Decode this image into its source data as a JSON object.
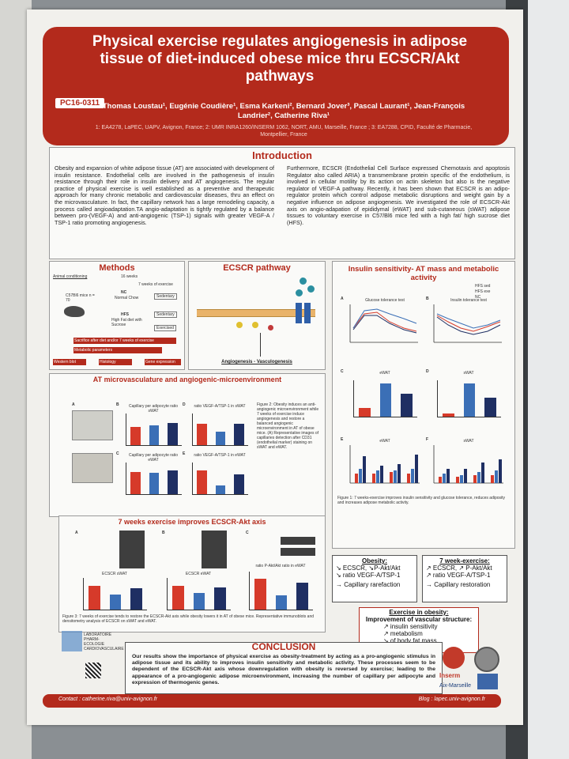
{
  "poster": {
    "code": "PC16-0311",
    "title": "Physical exercise regulates angiogenesis in adipose tissue of diet-induced obese mice thru ECSCR/Akt pathways",
    "authors": "Thomas Loustau¹, Eugénie Coudière¹, Esma Karkeni², Bernard Jover³, Pascal Laurant¹, Jean-François Landrier², Catherine Riva¹",
    "affiliations": "1: EA4278, LaPEC, UAPV, Avignon, France; 2: UMR INRA1260/INSERM 1062, NORT, AMU, Marseille, France ; 3: EA7288, CPID, Faculté de Pharmacie, Montpellier, France"
  },
  "intro": {
    "title": "Introduction",
    "left": "Obesity and expansion of white adipose tissue (AT) are associated with development of insulin resistance. Endothelial cells are involved in the pathogenesis of insulin resistance through their role in insulin delivery and AT angiogenesis. The regular practice of physical exercise is well established as a preventive and therapeutic approach for many chronic metabolic and cardiovascular diseases, thru an effect on the microvasculature. In fact, the capillary network has a large remodeling capacity, a process called angioadaptation.TA angio-adaptation is tightly regulated by a balance between pro-(VEGF-A) and anti-angiogenic (TSP-1) signals with greater VEGF-A / TSP-1 ratio promoting angiogenesis.",
    "right": "Furthermore, ECSCR (Endothelial Cell Surface expressed Chemotaxis and apoptosis Regulator also called ARIA) a transmembrane protein specific of the endothelium, is involved in cellular motility by its action on actin skeleton but also is the negative regulator of VEGF-A pathway. Recently, it has been shown that ECSCR is an adipo-regulator protein which control adipose metabolic disruptions and weight gain by a negative influence on adipose angiogenesis. We investigated the role of ECSCR-Akt axis on angio-adapation of epididymal (eWAT) and sub-cutaneous (sWAT) adipose tissues to voluntary exercise in C57/Bl6 mice fed with a high fat/ high sucrose diet (HFS)."
  },
  "methods": {
    "title": "Methods",
    "animal": "Animal conditioning",
    "mice": "C57Bl6 mice n = 70",
    "weeks16": "16 weeks",
    "weeks7": "7 weeks of exercise",
    "nc": "NC",
    "nc_sub": "Normal Chow",
    "hfs": "HFS",
    "hfs_sub": "High Fat diet with Sucrose",
    "sedentary": "Sedentary",
    "exercised": "Exercised",
    "sacrifice": "Sacrifice after diet and/or 7 weeks of exercise",
    "red1": "Metabolic parameters",
    "red2": "Western blot",
    "red3": "Histology",
    "red4": "Gene expression"
  },
  "pathway": {
    "title": "ECSCR pathway",
    "bottom": "Angiogenesis - Vasculogenesis"
  },
  "micro": {
    "title": "AT microvasculature and angiogenic-microenvironment",
    "labels": [
      "A",
      "B",
      "C",
      "D",
      "E"
    ],
    "chart_titles": [
      "Capillary per adipocyte ratio sWAT",
      "ratio VEGF-A/TSP-1 in sWAT",
      "Capillary per adipocyte ratio eWAT",
      "ratio VEGF-A/TSP-1 in eWAT"
    ],
    "caption": "Figure 2: Obesity induces an anti-angiogenic microenvironment while 7 weeks of exercise induce angiogenesis and restore a balanced angiogenic microenvironment in AT of obese mice. (A) Representative images of capillaries detection after CD31 (endothelial marker) staining on sWAT and eWAT."
  },
  "ecscr": {
    "title": "7 weeks exercise improves ECSCR-Akt axis",
    "labels": [
      "A",
      "B",
      "C"
    ],
    "chart_titles": [
      "ECSCR sWAT",
      "ECSCR eWAT",
      "ratio P-Akt/Akt ratio in eWAT"
    ],
    "caption": "Figure 3: 7 weeks of exercise tends to restore the ECSCR-Akt axis while obesity lowers it in AT of obese mice. Representative immunoblots and densitometry analysis of ECSCR on sWAT and eWAT."
  },
  "insulin": {
    "title": "Insulin sensitivity- AT mass and metabolic activity",
    "legend": [
      "HFS sed",
      "HFS exe",
      "NC"
    ],
    "panel_labels": [
      "A",
      "B",
      "C",
      "D",
      "E",
      "F"
    ],
    "chart_titles": [
      "Glucose tolerance test",
      "Insulin tolerance test",
      "eWAT",
      "sWAT",
      "eWAT",
      "sWAT"
    ],
    "caption": "Figure 1: 7 weeks-exercise improves insulin sensitivity and glucose tolerance, reduces adiposity and increases adipose metabolic activity."
  },
  "results": {
    "obesity_title": "Obesity:",
    "obesity_lines": [
      "↘ ECSCR, ↘P-Akt/Akt",
      "↘ ratio VEGF-A/TSP-1",
      "→ Capillary rarefaction"
    ],
    "exercise_title": "7 week-exercise:",
    "exercise_lines": [
      "↗ ECSCR, ↗ P-Akt/Akt",
      "↗ ratio VEGF-A/TSP-1",
      "→ Capillary restoration"
    ],
    "vascular_title": "Exercise in obesity:",
    "vascular_sub": "Improvement of vascular structure:",
    "vascular_lines": [
      "↗ insulin sensitivity",
      "↗ metabolism",
      "↘ of body fat mass"
    ]
  },
  "conclusion": {
    "title": "CONCLUSION",
    "text": "Our results show the importance of physical exercise as obesity-treatment by acting as a pro-angiogenic stimulus in adipose tissue and its ability to improves insulin sensitivity and metabolic activity. These processes seem to be dependent of the ECSCR-Akt axis whose downregulation with obesity is reversed by exercise; leading to the appearance of a pro-angiogenic adipose microenvironment, increasing the number of capillary per adipocyte and expression of thermogenic genes.",
    "lab": "LABORATOIRE PHARM-ECOLOGIE CARDIOVASCULAIRE",
    "inserm": "Inserm",
    "amu": "Aix-Marseille"
  },
  "footer": {
    "contact": "Contact : catherine.riva@univ-avignon.fr",
    "blog": "Blog : lapec.univ-avignon.fr"
  },
  "colors": {
    "header_red": "#b32a1c",
    "nc": "#d63a2a",
    "hfs_sed": "#3b6fb6",
    "hfs_exe": "#1f2f63"
  },
  "chart_data": [
    {
      "type": "bar",
      "title": "Capillary per adipocyte ratio sWAT",
      "categories": [
        "NC",
        "HFS sed",
        "HFS exe"
      ],
      "values": [
        0.6,
        0.65,
        0.75
      ]
    },
    {
      "type": "bar",
      "title": "ratio VEGF-A/TSP-1 in sWAT",
      "categories": [
        "NC",
        "HFS sed",
        "HFS exe"
      ],
      "values": [
        0.7,
        0.45,
        0.72
      ]
    },
    {
      "type": "bar",
      "title": "Capillary per adipocyte ratio eWAT",
      "categories": [
        "NC",
        "HFS sed",
        "HFS exe"
      ],
      "values": [
        0.75,
        0.7,
        0.8
      ]
    },
    {
      "type": "bar",
      "title": "ratio VEGF-A/TSP-1 in eWAT",
      "categories": [
        "NC",
        "HFS sed",
        "HFS exe"
      ],
      "values": [
        0.8,
        0.3,
        0.65
      ]
    },
    {
      "type": "bar",
      "title": "ECSCR sWAT",
      "categories": [
        "NC",
        "HFS sed",
        "HFS exe"
      ],
      "values": [
        0.8,
        0.5,
        0.7
      ]
    },
    {
      "type": "bar",
      "title": "ECSCR eWAT",
      "categories": [
        "NC",
        "HFS sed",
        "HFS exe"
      ],
      "values": [
        0.8,
        0.55,
        0.75
      ]
    },
    {
      "type": "bar",
      "title": "ratio P-Akt/Akt ratio in eWAT",
      "categories": [
        "NC",
        "HFS sed",
        "HFS exe"
      ],
      "values": [
        0.85,
        0.4,
        0.75
      ]
    },
    {
      "type": "bar",
      "title": "eWAT",
      "categories": [
        "NC",
        "HFS sed",
        "HFS exe"
      ],
      "values": [
        0.25,
        0.95,
        0.65
      ]
    },
    {
      "type": "bar",
      "title": "sWAT",
      "categories": [
        "NC",
        "HFS sed",
        "HFS exe"
      ],
      "values": [
        0.1,
        0.95,
        0.55
      ]
    }
  ]
}
